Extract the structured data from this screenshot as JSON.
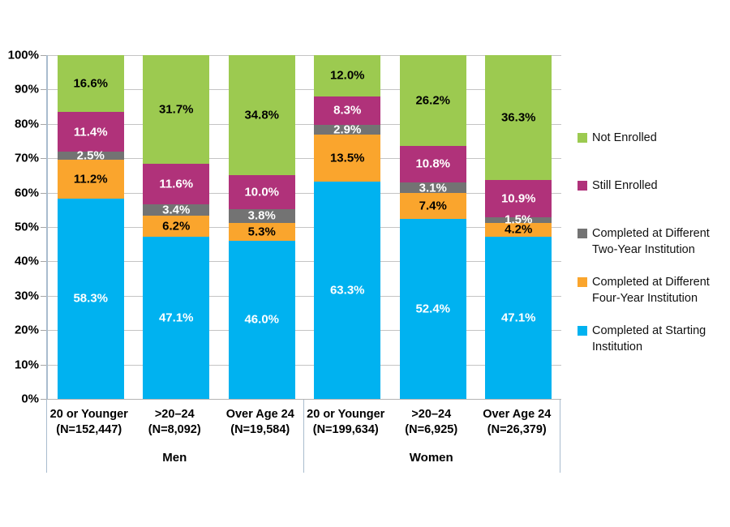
{
  "chart_data": {
    "type": "bar",
    "stacked": true,
    "ylim": [
      0,
      100
    ],
    "grid": true,
    "legend_position": "right",
    "yticks": [
      "0%",
      "10%",
      "20%",
      "30%",
      "40%",
      "50%",
      "60%",
      "70%",
      "80%",
      "90%",
      "100%"
    ],
    "groups": [
      {
        "label": "Men",
        "bar_indexes": [
          0,
          1,
          2
        ]
      },
      {
        "label": "Women",
        "bar_indexes": [
          3,
          4,
          5
        ]
      }
    ],
    "categories": [
      {
        "line1": "20 or Younger",
        "line2": "(N=152,447)"
      },
      {
        "line1": ">20–24",
        "line2": "(N=8,092)"
      },
      {
        "line1": "Over Age 24",
        "line2": "(N=19,584)"
      },
      {
        "line1": "20 or Younger",
        "line2": "(N=199,634)"
      },
      {
        "line1": ">20–24",
        "line2": "(N=6,925)"
      },
      {
        "line1": "Over Age 24",
        "line2": "(N=26,379)"
      }
    ],
    "series": [
      {
        "name": "Completed at Starting Institution",
        "color": "#00B2F0",
        "label_color": "#FFFFFF",
        "values": [
          58.3,
          47.1,
          46.0,
          63.3,
          52.4,
          47.1
        ]
      },
      {
        "name": "Completed at Different Four-Year Institution",
        "color": "#FAA52D",
        "label_color": "#000000",
        "values": [
          11.2,
          6.2,
          5.3,
          13.5,
          7.4,
          4.2
        ]
      },
      {
        "name": "Completed at Different Two-Year Institution",
        "color": "#737373",
        "label_color": "#FFFFFF",
        "values": [
          2.5,
          3.4,
          3.8,
          2.9,
          3.1,
          1.5
        ]
      },
      {
        "name": "Still Enrolled",
        "color": "#B0327A",
        "label_color": "#FFFFFF",
        "values": [
          11.4,
          11.6,
          10.0,
          8.3,
          10.8,
          10.9
        ]
      },
      {
        "name": "Not Enrolled",
        "color": "#9CCA50",
        "label_color": "#000000",
        "values": [
          16.6,
          31.7,
          34.8,
          12.0,
          26.2,
          36.3
        ]
      }
    ],
    "legend_items": [
      "Not Enrolled",
      "Still Enrolled",
      "Completed at Different Two-Year Institution",
      "Completed at Different Four-Year Institution",
      "Completed at Starting Institution"
    ],
    "value_suffix": "%"
  }
}
